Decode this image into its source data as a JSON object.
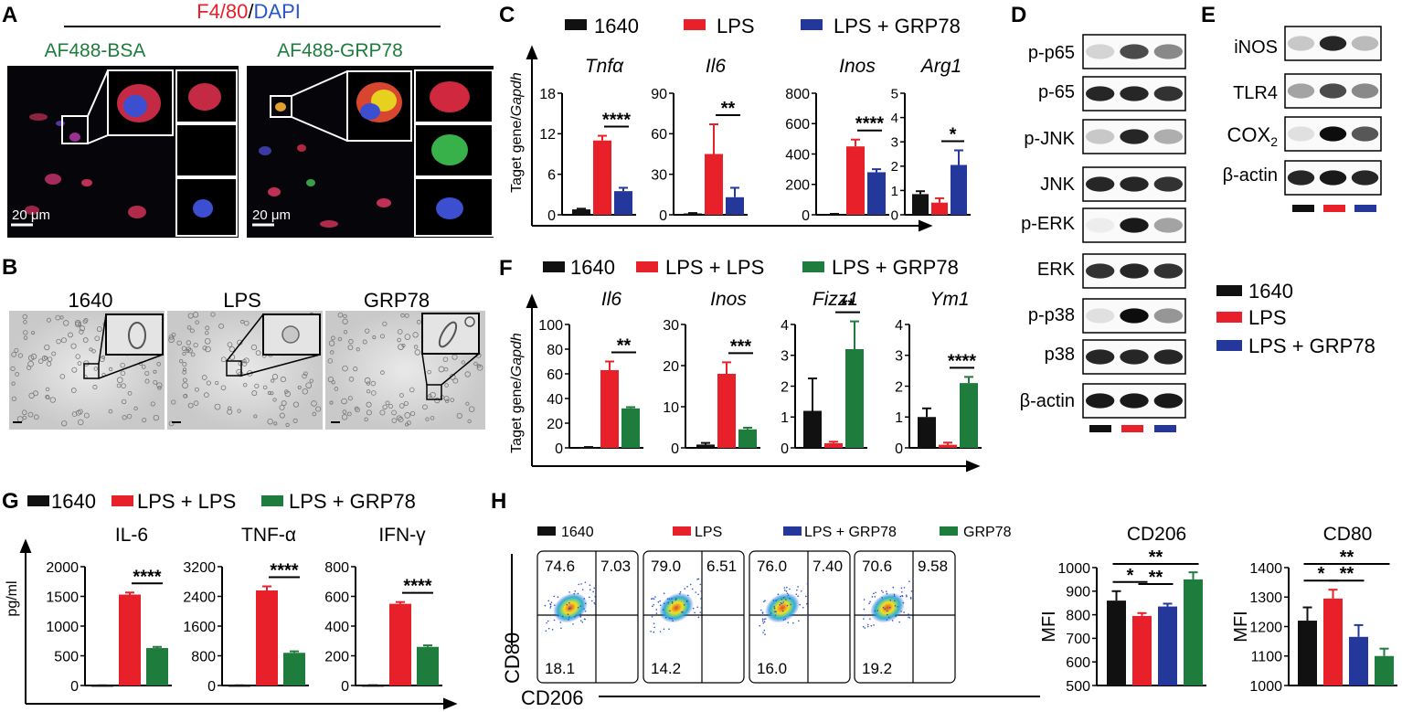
{
  "colors": {
    "ctrl": "#111111",
    "lps": "#e8202a",
    "grp": "#24379b",
    "green": "#1e7d3c",
    "axis": "#000000"
  },
  "panel_letters": [
    "A",
    "B",
    "C",
    "D",
    "E",
    "F",
    "G",
    "H"
  ],
  "panel_a": {
    "header_red": "F4/80",
    "header_slash": "/",
    "header_blue": "DAPI",
    "left_title": "AF488-BSA",
    "right_title": "AF488-GRP78",
    "scale_left": "20 μm",
    "scale_right": "20 μm"
  },
  "panel_b": {
    "labels": [
      "1640",
      "LPS",
      "GRP78"
    ]
  },
  "legend_c": [
    "1640",
    "LPS",
    "LPS + GRP78"
  ],
  "legend_f": [
    "1640",
    "LPS + LPS",
    "LPS + GRP78"
  ],
  "legend_g": [
    "1640",
    "LPS + LPS",
    "LPS + GRP78"
  ],
  "legend_h": [
    "1640",
    "LPS",
    "LPS + GRP78",
    "GRP78"
  ],
  "legend_de": [
    "1640",
    "LPS",
    "LPS + GRP78"
  ],
  "panel_d": {
    "bands": [
      "p-p65",
      "p-65",
      "p-JNK",
      "JNK",
      "p-ERK",
      "ERK",
      "p-p38",
      "p38",
      "β-actin"
    ]
  },
  "panel_e": {
    "bands": [
      "iNOS",
      "TLR4",
      "COX",
      "β-actin"
    ],
    "cox_subscript": "2"
  },
  "ylabel_cf": {
    "main": "Taget gene/",
    "italic": "Gapdh"
  },
  "ylabel_g": "pg/ml",
  "ylabel_h": "MFI",
  "flow": {
    "xlabel": "CD206",
    "ylabel": "CD80",
    "plots": [
      {
        "q1": "74.6",
        "q2": "7.03",
        "q3": "18.1"
      },
      {
        "q1": "79.0",
        "q2": "6.51",
        "q3": "14.2"
      },
      {
        "q1": "76.0",
        "q2": "7.40",
        "q3": "16.0"
      },
      {
        "q1": "70.6",
        "q2": "9.58",
        "q3": "19.2"
      }
    ]
  },
  "chart_data": [
    {
      "id": "C-Tnfa",
      "type": "bar",
      "title": "Tnfα",
      "ylabel": "Taget gene/Gapdh",
      "categories": [
        "1640",
        "LPS",
        "LPS + GRP78"
      ],
      "values": [
        0.8,
        11.0,
        3.5
      ],
      "errors": [
        0.1,
        0.7,
        0.5
      ],
      "ylim": [
        0,
        18
      ],
      "ticks": [
        0,
        6,
        12,
        18
      ],
      "sig": {
        "between": [
          1,
          2
        ],
        "label": "****"
      }
    },
    {
      "id": "C-Il6",
      "type": "bar",
      "title": "Il6",
      "categories": [
        "1640",
        "LPS",
        "LPS + GRP78"
      ],
      "values": [
        1,
        45,
        13
      ],
      "errors": [
        0.3,
        22,
        7
      ],
      "ylim": [
        0,
        90
      ],
      "ticks": [
        0,
        30,
        60,
        90
      ],
      "sig": {
        "between": [
          1,
          2
        ],
        "label": "**"
      }
    },
    {
      "id": "C-Inos",
      "type": "bar",
      "title": "Inos",
      "categories": [
        "1640",
        "LPS",
        "LPS + GRP78"
      ],
      "values": [
        4,
        450,
        280
      ],
      "errors": [
        2,
        45,
        20
      ],
      "ylim": [
        0,
        800
      ],
      "ticks": [
        0,
        200,
        400,
        600,
        800
      ],
      "sig": {
        "between": [
          1,
          2
        ],
        "label": "****"
      }
    },
    {
      "id": "C-Arg1",
      "type": "bar",
      "title": "Arg1",
      "categories": [
        "1640",
        "LPS",
        "LPS + GRP78"
      ],
      "values": [
        0.85,
        0.5,
        2.05
      ],
      "errors": [
        0.12,
        0.18,
        0.6
      ],
      "ylim": [
        0,
        5
      ],
      "ticks": [
        0,
        1,
        2,
        3,
        4,
        5
      ],
      "sig": {
        "between": [
          1,
          2
        ],
        "label": "*"
      }
    },
    {
      "id": "F-Il6",
      "type": "bar",
      "title": "Il6",
      "categories": [
        "1640",
        "LPS + LPS",
        "LPS + GRP78"
      ],
      "values": [
        0.5,
        63,
        32
      ],
      "errors": [
        0.2,
        7,
        1
      ],
      "ylim": [
        0,
        100
      ],
      "ticks": [
        0,
        20,
        40,
        60,
        80,
        100
      ],
      "sig": {
        "between": [
          1,
          2
        ],
        "label": "**"
      }
    },
    {
      "id": "F-Inos",
      "type": "bar",
      "title": "Inos",
      "categories": [
        "1640",
        "LPS + LPS",
        "LPS + GRP78"
      ],
      "values": [
        0.8,
        18,
        4.5
      ],
      "errors": [
        0.4,
        2.8,
        0.4
      ],
      "ylim": [
        0,
        30
      ],
      "ticks": [
        0,
        10,
        20,
        30
      ],
      "sig": {
        "between": [
          1,
          2
        ],
        "label": "***"
      }
    },
    {
      "id": "F-Fizz1",
      "type": "bar",
      "title": "Fizz1",
      "categories": [
        "1640",
        "LPS + LPS",
        "LPS + GRP78"
      ],
      "values": [
        1.2,
        0.15,
        3.2
      ],
      "errors": [
        1.05,
        0.05,
        0.9
      ],
      "ylim": [
        0,
        4
      ],
      "ticks": [
        0,
        1,
        2,
        3,
        4
      ],
      "sig": {
        "between": [
          1,
          2
        ],
        "label": "**"
      }
    },
    {
      "id": "F-Ym1",
      "type": "bar",
      "title": "Ym1",
      "categories": [
        "1640",
        "LPS + LPS",
        "LPS + GRP78"
      ],
      "values": [
        1.0,
        0.1,
        2.1
      ],
      "errors": [
        0.28,
        0.07,
        0.2
      ],
      "ylim": [
        0,
        4
      ],
      "ticks": [
        0,
        1,
        2,
        3,
        4
      ],
      "sig": {
        "between": [
          1,
          2
        ],
        "label": "****"
      }
    },
    {
      "id": "G-IL6",
      "type": "bar",
      "title": "IL-6",
      "ylabel": "pg/ml",
      "categories": [
        "1640",
        "LPS + LPS",
        "LPS + GRP78"
      ],
      "values": [
        2,
        1530,
        630
      ],
      "errors": [
        1,
        35,
        20
      ],
      "ylim": [
        0,
        2000
      ],
      "ticks": [
        0,
        500,
        1000,
        1500,
        2000
      ],
      "sig": {
        "between": [
          1,
          2
        ],
        "label": "****"
      }
    },
    {
      "id": "G-TNFa",
      "type": "bar",
      "title": "TNF-α",
      "categories": [
        "1640",
        "LPS + LPS",
        "LPS + GRP78"
      ],
      "values": [
        3,
        2560,
        880
      ],
      "errors": [
        2,
        110,
        40
      ],
      "ylim": [
        0,
        3200
      ],
      "ticks": [
        0,
        800,
        1600,
        2400,
        3200
      ],
      "sig": {
        "between": [
          1,
          2
        ],
        "label": "****"
      }
    },
    {
      "id": "G-IFNg",
      "type": "bar",
      "title": "IFN-γ",
      "categories": [
        "1640",
        "LPS + LPS",
        "LPS + GRP78"
      ],
      "values": [
        1,
        550,
        260
      ],
      "errors": [
        1,
        12,
        10
      ],
      "ylim": [
        0,
        800
      ],
      "ticks": [
        0,
        200,
        400,
        600,
        800
      ],
      "sig": {
        "between": [
          1,
          2
        ],
        "label": "****"
      }
    },
    {
      "id": "H-CD206",
      "type": "bar",
      "title": "CD206",
      "ylabel": "MFI",
      "categories": [
        "1640",
        "LPS",
        "LPS + GRP78",
        "GRP78"
      ],
      "values": [
        860,
        795,
        835,
        950
      ],
      "errors": [
        40,
        12,
        12,
        30
      ],
      "ylim": [
        500,
        1000
      ],
      "ticks": [
        500,
        600,
        700,
        800,
        900,
        1000
      ],
      "sigs": [
        {
          "between": [
            0,
            1
          ],
          "label": "*"
        },
        {
          "between": [
            1,
            2
          ],
          "label": "**"
        },
        {
          "between": [
            0,
            3
          ],
          "label": "**"
        }
      ]
    },
    {
      "id": "H-CD80",
      "type": "bar",
      "title": "CD80",
      "ylabel": "MFI",
      "categories": [
        "1640",
        "LPS",
        "LPS + GRP78",
        "GRP78"
      ],
      "values": [
        1220,
        1295,
        1165,
        1100
      ],
      "errors": [
        45,
        30,
        40,
        25
      ],
      "ylim": [
        1000,
        1400
      ],
      "ticks": [
        1000,
        1100,
        1200,
        1300,
        1400
      ],
      "sigs": [
        {
          "between": [
            0,
            1
          ],
          "label": "*"
        },
        {
          "between": [
            1,
            2
          ],
          "label": "**"
        },
        {
          "between": [
            0,
            3
          ],
          "label": "**"
        }
      ]
    }
  ]
}
